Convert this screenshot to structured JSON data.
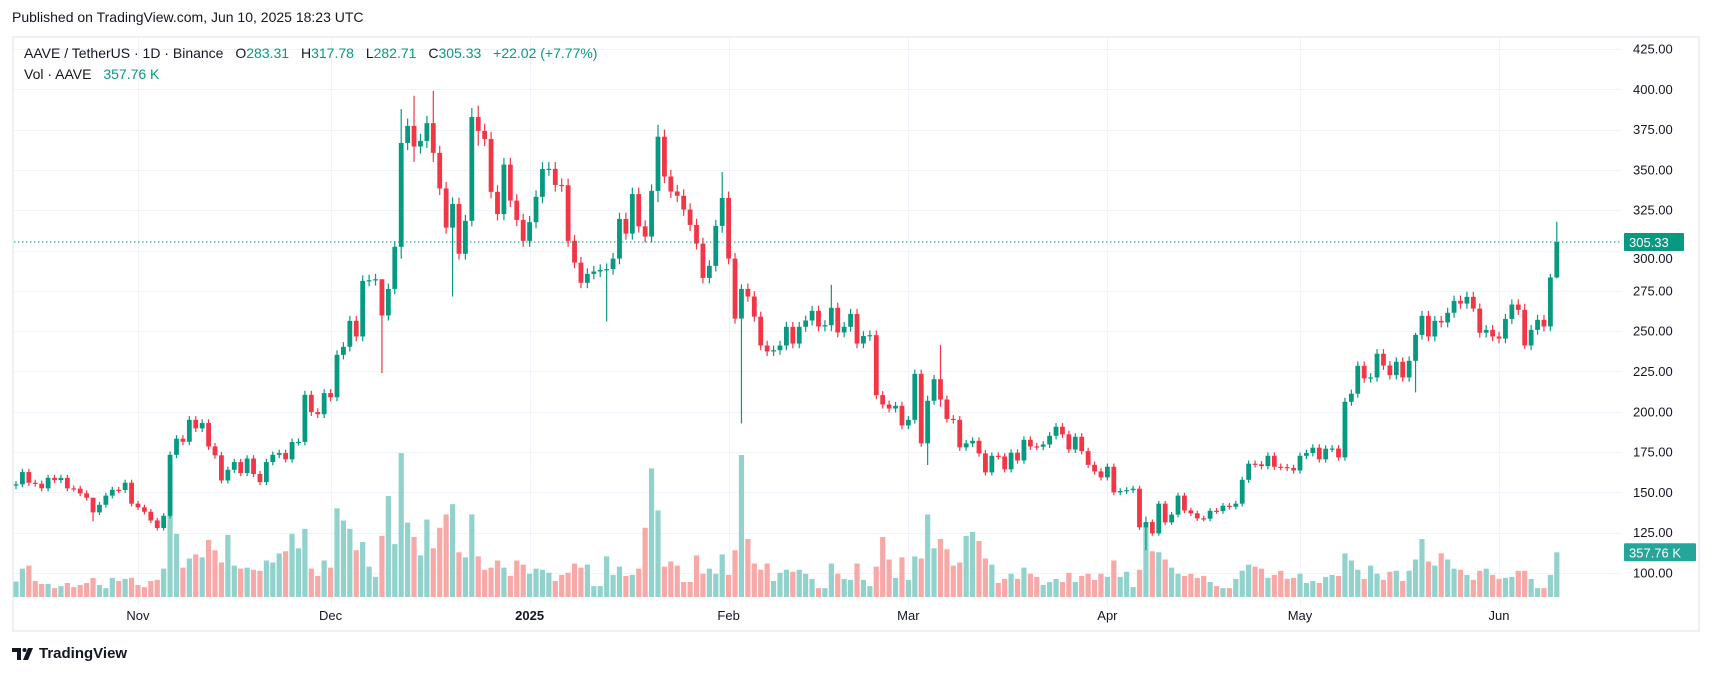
{
  "header": {
    "published": "Published on TradingView.com, Jun 10, 2025 18:23 UTC"
  },
  "legend": {
    "symbol": "AAVE / TetherUS · 1D · Binance",
    "o_label": "O",
    "o": "283.31",
    "h_label": "H",
    "h": "317.78",
    "l_label": "L",
    "l": "282.71",
    "c_label": "C",
    "c": "305.33",
    "change": "+22.02 (+7.77%)",
    "vol_label": "Vol · AAVE",
    "vol": "357.76 K"
  },
  "brand": {
    "name": "TradingView"
  },
  "colors": {
    "up": "#089981",
    "down": "#f23645",
    "vol_up": "#92d2cc",
    "vol_down": "#f7a9a7",
    "grid": "#f0f3fa",
    "price_tag": "#089981",
    "vol_tag": "#26a69a"
  },
  "chart_data": {
    "type": "candlestick",
    "title": "AAVE / TetherUS · 1D · Binance",
    "first_date": "2024-10-13",
    "last_date": "2025-06-10",
    "first_open": 154.5,
    "close": [
      155,
      162.6,
      156,
      155.4,
      152.5,
      159,
      157.6,
      159,
      152.5,
      152.3,
      149.4,
      146.7,
      137.6,
      142.3,
      148,
      151.6,
      151.5,
      156,
      143,
      140.7,
      138,
      132.6,
      127.9,
      135.5,
      173.3,
      183.3,
      181.4,
      195,
      189.7,
      193,
      178.5,
      173,
      157.4,
      164,
      168.8,
      162,
      171,
      161.4,
      156.4,
      168.8,
      173.3,
      174.4,
      170.5,
      181.2,
      181.3,
      210.5,
      199.8,
      198.5,
      211.6,
      209,
      235.3,
      240.3,
      256.4,
      246.7,
      281.2,
      281.6,
      282.2,
      259.7,
      276.2,
      302.3,
      366.7,
      377.3,
      364.5,
      368,
      379,
      360.6,
      338.5,
      314.2,
      328.9,
      298,
      318.4,
      382.8,
      374.2,
      369.2,
      336.4,
      322.6,
      353.3,
      331,
      319,
      306,
      317.6,
      333.3,
      350.6,
      350.7,
      340.7,
      340.5,
      306,
      292.5,
      280,
      285.5,
      287,
      288,
      288.5,
      295,
      319.6,
      310.5,
      335,
      315,
      308.7,
      337,
      370.6,
      345.9,
      336.6,
      334,
      325.4,
      315.9,
      304.3,
      283,
      290.5,
      315.3,
      332.6,
      295,
      257.8,
      276.2,
      271.5,
      259,
      241.1,
      237.4,
      238.2,
      241.1,
      252.7,
      242.3,
      252.7,
      256.6,
      262.6,
      252.9,
      253.7,
      264.5,
      249.2,
      252.7,
      260.7,
      242.3,
      247,
      247.5,
      210.3,
      204.5,
      202,
      203.7,
      191.5,
      195,
      223.5,
      180.4,
      206.8,
      220.2,
      207.6,
      195.6,
      195,
      177.9,
      180.4,
      182,
      174.2,
      162.4,
      172.7,
      172.3,
      164.3,
      174.6,
      169.8,
      182.6,
      178.5,
      178.3,
      179.7,
      185.1,
      190.7,
      186,
      176.6,
      184.5,
      175.6,
      167.1,
      163,
      159.3,
      165.9,
      150,
      150.8,
      151.4,
      152.3,
      128.3,
      131.6,
      124.6,
      143,
      131.4,
      136.2,
      148,
      138.8,
      137,
      133.9,
      133.7,
      138.6,
      138.4,
      141.7,
      141.1,
      143,
      157.8,
      167.8,
      167.4,
      166.3,
      172.7,
      165.9,
      165.7,
      165.1,
      163.6,
      172.7,
      174.4,
      177.7,
      170.5,
      177.1,
      177.2,
      171.7,
      206.2,
      211.2,
      228.5,
      220.7,
      221.3,
      236,
      228.7,
      222.7,
      231,
      221.3,
      231.6,
      247.7,
      259.5,
      246.7,
      256.4,
      255.4,
      261.4,
      268.8,
      267.1,
      271.3,
      264,
      249,
      250.8,
      246.7,
      245.4,
      257.6,
      266.5,
      263.2,
      241.1,
      250.8,
      257,
      252.9,
      283.31,
      305.33
    ],
    "wick_overrides": {
      "1": [
        157,
        152
      ],
      "13": [
        146,
        132
      ],
      "58": [
        282,
        224
      ],
      "61": [
        387.8,
        295
      ],
      "63": [
        396,
        355
      ],
      "66": [
        399,
        355
      ],
      "69": [
        333,
        271.5
      ],
      "72": [
        388.4,
        315
      ],
      "73": [
        389.9,
        365
      ],
      "93": [
        292,
        256
      ],
      "101": [
        378,
        330
      ],
      "111": [
        348.7,
        311
      ],
      "114": [
        279,
        192.8
      ],
      "128": [
        278.7,
        250
      ],
      "143": [
        210,
        167
      ],
      "145": [
        241.5,
        203
      ],
      "177": [
        135,
        114
      ],
      "219": [
        249,
        212
      ],
      "228": [
        274.4,
        262
      ],
      "236": [
        267,
        239
      ],
      "240": [
        285.5,
        250
      ],
      "241": [
        317.78,
        282.71
      ]
    },
    "volume_k": [
      123,
      227,
      251,
      128,
      104,
      104,
      71,
      87,
      112,
      79,
      96,
      112,
      153,
      96,
      71,
      153,
      128,
      145,
      153,
      96,
      79,
      128,
      137,
      227,
      652,
      505,
      235,
      308,
      341,
      317,
      456,
      374,
      276,
      497,
      251,
      227,
      235,
      218,
      210,
      292,
      276,
      349,
      366,
      505,
      390,
      546,
      227,
      169,
      292,
      235,
      710,
      612,
      546,
      374,
      440,
      243,
      161,
      489,
      808,
      423,
      1152,
      595,
      480,
      333,
      620,
      390,
      554,
      661,
      743,
      358,
      317,
      661,
      325,
      218,
      235,
      292,
      235,
      169,
      292,
      259,
      186,
      227,
      218,
      194,
      128,
      177,
      194,
      268,
      235,
      259,
      87,
      87,
      325,
      177,
      243,
      169,
      177,
      227,
      554,
      1029,
      693,
      243,
      284,
      251,
      120,
      120,
      333,
      186,
      227,
      186,
      341,
      177,
      374,
      1136,
      464,
      268,
      218,
      268,
      128,
      194,
      218,
      202,
      218,
      186,
      145,
      71,
      71,
      268,
      186,
      145,
      137,
      268,
      137,
      87,
      243,
      480,
      300,
      153,
      317,
      137,
      325,
      308,
      661,
      390,
      464,
      382,
      251,
      276,
      489,
      521,
      448,
      308,
      259,
      112,
      145,
      186,
      145,
      235,
      186,
      161,
      96,
      120,
      145,
      120,
      194,
      120,
      169,
      186,
      137,
      186,
      161,
      292,
      161,
      202,
      79,
      218,
      562,
      366,
      358,
      300,
      235,
      186,
      169,
      186,
      153,
      169,
      120,
      87,
      71,
      71,
      145,
      210,
      259,
      243,
      227,
      153,
      177,
      210,
      145,
      153,
      186,
      112,
      128,
      112,
      161,
      177,
      169,
      349,
      292,
      218,
      145,
      251,
      186,
      137,
      202,
      210,
      128,
      210,
      300,
      464,
      284,
      251,
      349,
      300,
      227,
      218,
      177,
      137,
      210,
      227,
      177,
      145,
      153,
      161,
      210,
      210,
      145,
      71,
      71,
      177,
      357.76
    ],
    "x_ticks": [
      {
        "label": "Nov",
        "index": 20
      },
      {
        "label": "Dec",
        "index": 50
      },
      {
        "label": "2025",
        "index": 81,
        "bold": true
      },
      {
        "label": "Feb",
        "index": 112
      },
      {
        "label": "Mar",
        "index": 140
      },
      {
        "label": "Apr",
        "index": 171
      },
      {
        "label": "May",
        "index": 201
      },
      {
        "label": "Jun",
        "index": 232
      }
    ],
    "y_ticks": [
      "425.00",
      "400.00",
      "375.00",
      "350.00",
      "325.00",
      "300.00",
      "275.00",
      "250.00",
      "225.00",
      "200.00",
      "175.00",
      "150.00",
      "125.00",
      "100.00"
    ],
    "ylim": [
      100,
      425
    ],
    "last_price": 305.33,
    "last_price_label": "305.33",
    "last_volume_label": "357.76 K",
    "grid": true
  }
}
